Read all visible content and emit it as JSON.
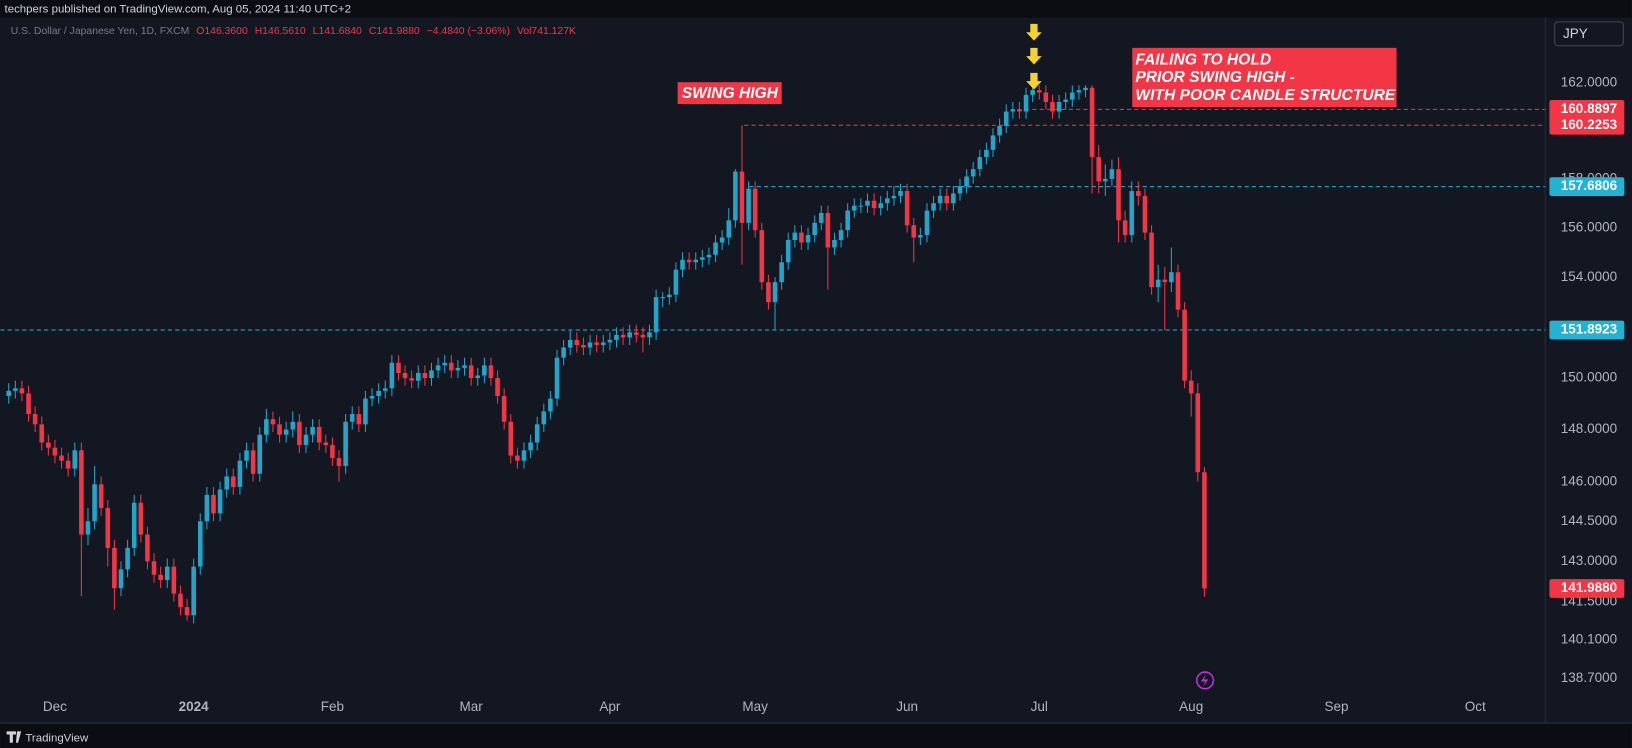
{
  "header": "techpers published on TradingView.com, Aug 05, 2024 11:40 UTC+2",
  "footer": "TradingView",
  "chart_data": {
    "type": "candlestick",
    "symbol": "U.S. Dollar / Japanese Yen, 1D, FXCM",
    "legend_values": [
      "O146.3600",
      "H146.5610",
      "L141.6840",
      "C141.9880",
      "−4.4840 (−3.06%)",
      "Vol741.127K"
    ],
    "currency": "JPY",
    "log_scale": true,
    "grid": false,
    "up_color": "#22a5c9",
    "down_color": "#f23645",
    "ylim": [
      138.1,
      164.74
    ],
    "yticks": [
      {
        "value": 162,
        "label": "162.0000"
      },
      {
        "value": 158,
        "label": "158.0000"
      },
      {
        "value": 156,
        "label": "156.0000"
      },
      {
        "value": 154,
        "label": "154.0000"
      },
      {
        "value": 150,
        "label": "150.0000"
      },
      {
        "value": 148,
        "label": "148.0000"
      },
      {
        "value": 146,
        "label": "146.0000"
      },
      {
        "value": 144.5,
        "label": "144.5000"
      },
      {
        "value": 143,
        "label": "143.0000"
      },
      {
        "value": 141.5,
        "label": "141.5000"
      },
      {
        "value": 140.1,
        "label": "140.1000"
      },
      {
        "value": 138.7,
        "label": "138.7000"
      }
    ],
    "price_lines": [
      {
        "value": 160.8897,
        "color": "#f23645"
      },
      {
        "value": 160.2253,
        "color": "#f23645"
      },
      {
        "value": 157.6806,
        "color": "#22b3d3"
      },
      {
        "value": 151.8923,
        "color": "#22b3d3"
      }
    ],
    "last_price_label": "141.9880",
    "annotations": [
      "SWING HIGH",
      "FAILING TO HOLD",
      "PRIOR SWING HIGH -",
      "WITH POOR CANDLE STRUCTURE"
    ],
    "categories": [
      null,
      null,
      null,
      null,
      null,
      null,
      null,
      "Dec",
      null,
      null,
      null,
      null,
      null,
      null,
      null,
      null,
      null,
      null,
      null,
      null,
      null,
      null,
      null,
      null,
      null,
      null,
      null,
      null,
      "2024",
      null,
      null,
      null,
      null,
      null,
      null,
      null,
      null,
      null,
      null,
      null,
      null,
      null,
      null,
      null,
      null,
      null,
      null,
      null,
      null,
      "Feb",
      null,
      null,
      null,
      null,
      null,
      null,
      null,
      null,
      null,
      null,
      null,
      null,
      null,
      null,
      null,
      null,
      null,
      null,
      null,
      null,
      "Mar",
      null,
      null,
      null,
      null,
      null,
      null,
      null,
      null,
      null,
      null,
      null,
      null,
      null,
      null,
      null,
      null,
      null,
      null,
      null,
      null,
      "Apr",
      null,
      null,
      null,
      null,
      null,
      null,
      null,
      null,
      null,
      null,
      null,
      null,
      null,
      null,
      null,
      null,
      null,
      null,
      null,
      null,
      null,
      "May",
      null,
      null,
      null,
      null,
      null,
      null,
      null,
      null,
      null,
      null,
      null,
      null,
      null,
      null,
      null,
      null,
      null,
      null,
      null,
      null,
      null,
      null,
      "Jun",
      null,
      null,
      null,
      null,
      null,
      null,
      null,
      null,
      null,
      null,
      null,
      null,
      null,
      null,
      null,
      null,
      null,
      null,
      null,
      "Jul",
      null,
      null,
      null,
      null,
      null,
      null,
      null,
      null,
      null,
      null,
      null,
      null,
      null,
      null,
      null,
      null,
      null,
      null,
      null,
      null,
      null,
      null,
      "Aug",
      null,
      null,
      null,
      null,
      null,
      null,
      null,
      null,
      null,
      null,
      null,
      null,
      null,
      null,
      null,
      null,
      null,
      null,
      null,
      null,
      null,
      "Sep",
      null,
      null,
      null,
      null,
      null,
      null,
      null,
      null,
      null,
      null,
      null,
      null,
      null,
      null,
      null,
      null,
      null,
      null,
      null,
      null,
      "Oct",
      null,
      null,
      null,
      null,
      null,
      null,
      null,
      null,
      null,
      null
    ],
    "ohlc": [
      [
        149.3,
        149.8,
        149.0,
        149.5
      ],
      [
        149.5,
        149.9,
        149.2,
        149.6
      ],
      [
        149.6,
        149.9,
        149.1,
        149.4
      ],
      [
        149.4,
        149.7,
        148.3,
        148.6
      ],
      [
        148.6,
        148.9,
        147.9,
        148.2
      ],
      [
        148.2,
        148.5,
        147.2,
        147.5
      ],
      [
        147.5,
        147.8,
        147.0,
        147.3
      ],
      [
        147.3,
        147.6,
        146.7,
        147.0
      ],
      [
        147.0,
        147.3,
        146.5,
        146.8
      ],
      [
        146.8,
        147.1,
        146.2,
        146.5
      ],
      [
        146.5,
        147.5,
        146.2,
        147.2
      ],
      [
        147.2,
        147.5,
        141.7,
        144.0
      ],
      [
        144.0,
        145.0,
        143.6,
        144.5
      ],
      [
        144.5,
        146.6,
        144.2,
        145.9
      ],
      [
        145.9,
        146.2,
        144.7,
        145.0
      ],
      [
        145.0,
        145.3,
        142.8,
        143.5
      ],
      [
        143.5,
        143.8,
        141.2,
        142.0
      ],
      [
        142.0,
        143.0,
        141.7,
        142.7
      ],
      [
        142.7,
        143.8,
        142.4,
        143.5
      ],
      [
        143.5,
        145.5,
        143.2,
        145.2
      ],
      [
        145.2,
        145.5,
        143.7,
        144.0
      ],
      [
        144.0,
        144.3,
        142.7,
        143.0
      ],
      [
        143.0,
        143.3,
        142.2,
        142.5
      ],
      [
        142.5,
        142.8,
        142.0,
        142.3
      ],
      [
        142.3,
        143.1,
        142.0,
        142.8
      ],
      [
        142.8,
        143.1,
        141.5,
        141.8
      ],
      [
        141.8,
        142.1,
        141.0,
        141.3
      ],
      [
        141.3,
        141.6,
        140.8,
        141.0
      ],
      [
        141.0,
        143.1,
        140.7,
        142.8
      ],
      [
        142.8,
        144.8,
        142.5,
        144.5
      ],
      [
        144.5,
        145.8,
        144.2,
        145.5
      ],
      [
        145.5,
        145.8,
        144.5,
        144.8
      ],
      [
        144.8,
        146.0,
        144.5,
        145.7
      ],
      [
        145.7,
        146.5,
        145.4,
        146.2
      ],
      [
        146.2,
        146.5,
        145.5,
        145.8
      ],
      [
        145.8,
        147.1,
        145.5,
        146.8
      ],
      [
        146.8,
        147.5,
        146.5,
        147.2
      ],
      [
        147.2,
        147.5,
        146.0,
        146.3
      ],
      [
        146.3,
        148.1,
        146.0,
        147.8
      ],
      [
        147.8,
        148.8,
        147.5,
        148.4
      ],
      [
        148.4,
        148.7,
        147.9,
        148.2
      ],
      [
        148.2,
        148.5,
        147.5,
        147.8
      ],
      [
        147.8,
        148.3,
        147.5,
        148.0
      ],
      [
        148.0,
        148.7,
        147.7,
        148.3
      ],
      [
        148.3,
        148.6,
        147.1,
        147.4
      ],
      [
        147.4,
        148.1,
        147.1,
        147.8
      ],
      [
        147.8,
        148.4,
        147.5,
        148.1
      ],
      [
        148.1,
        148.4,
        147.2,
        147.5
      ],
      [
        147.5,
        147.8,
        147.1,
        147.4
      ],
      [
        147.4,
        147.7,
        146.6,
        146.9
      ],
      [
        146.9,
        147.2,
        146.0,
        146.6
      ],
      [
        146.6,
        148.6,
        146.3,
        148.3
      ],
      [
        148.3,
        148.9,
        148.0,
        148.6
      ],
      [
        148.6,
        148.9,
        147.9,
        148.2
      ],
      [
        148.2,
        149.5,
        147.9,
        149.2
      ],
      [
        149.2,
        149.6,
        148.9,
        149.3
      ],
      [
        149.3,
        149.8,
        149.0,
        149.5
      ],
      [
        149.5,
        149.9,
        149.2,
        149.6
      ],
      [
        149.6,
        150.9,
        149.3,
        150.6
      ],
      [
        150.6,
        150.9,
        149.9,
        150.2
      ],
      [
        150.2,
        150.5,
        149.7,
        150.0
      ],
      [
        150.0,
        150.3,
        149.6,
        149.9
      ],
      [
        149.9,
        150.5,
        149.6,
        150.2
      ],
      [
        150.2,
        150.5,
        149.7,
        150.0
      ],
      [
        150.0,
        150.6,
        149.7,
        150.3
      ],
      [
        150.3,
        150.8,
        150.0,
        150.5
      ],
      [
        150.5,
        150.9,
        150.2,
        150.6
      ],
      [
        150.6,
        150.9,
        150.0,
        150.3
      ],
      [
        150.3,
        150.7,
        150.0,
        150.4
      ],
      [
        150.4,
        150.8,
        150.1,
        150.5
      ],
      [
        150.5,
        150.8,
        149.7,
        150.0
      ],
      [
        150.0,
        150.4,
        149.7,
        150.1
      ],
      [
        150.1,
        150.8,
        149.8,
        150.5
      ],
      [
        150.5,
        150.8,
        149.7,
        150.0
      ],
      [
        150.0,
        150.3,
        149.0,
        149.3
      ],
      [
        149.3,
        149.6,
        148.0,
        148.3
      ],
      [
        148.3,
        148.6,
        146.7,
        147.0
      ],
      [
        147.0,
        147.3,
        146.5,
        146.8
      ],
      [
        146.8,
        147.5,
        146.5,
        147.2
      ],
      [
        147.2,
        147.8,
        146.9,
        147.5
      ],
      [
        147.5,
        148.5,
        147.2,
        148.2
      ],
      [
        148.2,
        149.0,
        147.9,
        148.7
      ],
      [
        148.7,
        149.5,
        148.4,
        149.2
      ],
      [
        149.2,
        151.1,
        148.9,
        150.8
      ],
      [
        150.8,
        151.5,
        150.5,
        151.2
      ],
      [
        151.2,
        151.9,
        150.9,
        151.5
      ],
      [
        151.5,
        151.8,
        151.0,
        151.3
      ],
      [
        151.3,
        151.6,
        150.9,
        151.2
      ],
      [
        151.2,
        151.7,
        150.9,
        151.4
      ],
      [
        151.4,
        151.7,
        151.0,
        151.3
      ],
      [
        151.3,
        151.7,
        151.0,
        151.4
      ],
      [
        151.4,
        151.8,
        151.1,
        151.5
      ],
      [
        151.5,
        152.0,
        151.2,
        151.7
      ],
      [
        151.7,
        152.0,
        151.3,
        151.6
      ],
      [
        151.6,
        152.1,
        151.3,
        151.8
      ],
      [
        151.8,
        152.1,
        151.4,
        151.7
      ],
      [
        151.7,
        152.0,
        151.0,
        151.6
      ],
      [
        151.6,
        152.1,
        151.3,
        151.8
      ],
      [
        151.8,
        153.5,
        151.5,
        153.2
      ],
      [
        153.2,
        153.4,
        152.8,
        153.2
      ],
      [
        153.2,
        153.6,
        152.9,
        153.3
      ],
      [
        153.3,
        154.6,
        153.0,
        154.3
      ],
      [
        154.3,
        155.0,
        154.0,
        154.7
      ],
      [
        154.7,
        155.0,
        154.3,
        154.6
      ],
      [
        154.6,
        155.0,
        154.3,
        154.7
      ],
      [
        154.7,
        155.1,
        154.4,
        154.8
      ],
      [
        154.8,
        155.2,
        154.5,
        154.9
      ],
      [
        154.9,
        155.7,
        154.6,
        155.4
      ],
      [
        155.4,
        155.9,
        155.1,
        155.6
      ],
      [
        155.6,
        156.8,
        155.3,
        156.3
      ],
      [
        156.3,
        158.4,
        156.0,
        158.3
      ],
      [
        158.3,
        160.22,
        154.5,
        156.2
      ],
      [
        156.2,
        157.9,
        155.9,
        157.6
      ],
      [
        157.6,
        157.9,
        155.6,
        155.9
      ],
      [
        155.9,
        156.2,
        153.5,
        153.8
      ],
      [
        153.8,
        154.1,
        152.7,
        153.0
      ],
      [
        153.0,
        154.0,
        151.89,
        153.8
      ],
      [
        153.8,
        154.9,
        153.5,
        154.6
      ],
      [
        154.6,
        155.8,
        154.3,
        155.5
      ],
      [
        155.5,
        156.1,
        155.2,
        155.8
      ],
      [
        155.8,
        156.1,
        155.1,
        155.4
      ],
      [
        155.4,
        156.0,
        155.1,
        155.7
      ],
      [
        155.7,
        156.5,
        155.4,
        156.2
      ],
      [
        156.2,
        156.9,
        155.9,
        156.6
      ],
      [
        156.6,
        156.9,
        153.5,
        155.2
      ],
      [
        155.2,
        155.8,
        154.9,
        155.5
      ],
      [
        155.5,
        156.2,
        155.2,
        155.9
      ],
      [
        155.9,
        157.0,
        155.6,
        156.7
      ],
      [
        156.7,
        157.2,
        156.4,
        156.9
      ],
      [
        156.9,
        157.2,
        156.6,
        156.9
      ],
      [
        156.9,
        157.4,
        156.6,
        157.1
      ],
      [
        157.1,
        157.4,
        156.5,
        156.8
      ],
      [
        156.8,
        157.3,
        156.5,
        157.0
      ],
      [
        157.0,
        157.5,
        156.7,
        157.2
      ],
      [
        157.2,
        157.7,
        156.9,
        157.3
      ],
      [
        157.3,
        157.8,
        157.0,
        157.5
      ],
      [
        157.5,
        157.8,
        155.8,
        156.1
      ],
      [
        156.1,
        156.4,
        154.6,
        155.6
      ],
      [
        155.6,
        156.0,
        155.3,
        155.7
      ],
      [
        155.7,
        157.0,
        155.4,
        156.7
      ],
      [
        156.7,
        157.3,
        156.4,
        157.0
      ],
      [
        157.0,
        157.6,
        156.7,
        157.3
      ],
      [
        157.3,
        157.6,
        156.7,
        157.0
      ],
      [
        157.0,
        157.7,
        156.7,
        157.4
      ],
      [
        157.4,
        158.0,
        157.1,
        157.7
      ],
      [
        157.7,
        158.4,
        157.4,
        158.1
      ],
      [
        158.1,
        158.7,
        157.8,
        158.4
      ],
      [
        158.4,
        159.2,
        158.1,
        158.9
      ],
      [
        158.9,
        159.5,
        158.6,
        159.2
      ],
      [
        159.2,
        160.1,
        158.9,
        159.8
      ],
      [
        159.8,
        160.5,
        159.5,
        160.2
      ],
      [
        160.2,
        161.1,
        159.9,
        160.8
      ],
      [
        160.8,
        161.2,
        160.5,
        160.9
      ],
      [
        160.9,
        161.2,
        160.5,
        160.8
      ],
      [
        160.8,
        161.8,
        160.5,
        161.5
      ],
      [
        161.5,
        161.95,
        161.2,
        161.7
      ],
      [
        161.7,
        161.9,
        161.3,
        161.6
      ],
      [
        161.6,
        161.9,
        160.9,
        161.2
      ],
      [
        161.2,
        161.5,
        160.5,
        160.8
      ],
      [
        160.8,
        161.5,
        160.5,
        161.2
      ],
      [
        161.2,
        161.6,
        160.9,
        161.3
      ],
      [
        161.3,
        161.9,
        161.0,
        161.6
      ],
      [
        161.6,
        161.9,
        161.3,
        161.7
      ],
      [
        161.7,
        161.9,
        161.4,
        161.8
      ],
      [
        161.8,
        161.9,
        157.4,
        158.9
      ],
      [
        158.9,
        159.4,
        157.4,
        157.9
      ],
      [
        157.9,
        158.6,
        157.3,
        158.0
      ],
      [
        158.0,
        158.8,
        157.7,
        158.4
      ],
      [
        158.4,
        158.9,
        155.4,
        156.3
      ],
      [
        156.3,
        156.7,
        155.4,
        155.7
      ],
      [
        155.7,
        157.9,
        155.4,
        157.5
      ],
      [
        157.5,
        157.9,
        156.9,
        157.3
      ],
      [
        157.3,
        157.6,
        155.5,
        155.8
      ],
      [
        155.8,
        156.1,
        153.3,
        153.6
      ],
      [
        153.6,
        154.5,
        153.0,
        153.9
      ],
      [
        153.9,
        154.4,
        151.89,
        153.8
      ],
      [
        153.8,
        155.2,
        153.4,
        154.2
      ],
      [
        154.2,
        154.5,
        152.4,
        152.7
      ],
      [
        152.7,
        153.0,
        149.6,
        149.9
      ],
      [
        149.9,
        150.3,
        148.5,
        149.4
      ],
      [
        149.4,
        149.8,
        146.0,
        146.36
      ],
      [
        146.36,
        146.561,
        141.684,
        141.988
      ],
      null,
      null,
      null,
      null,
      null,
      null,
      null,
      null,
      null,
      null,
      null,
      null,
      null,
      null,
      null,
      null,
      null,
      null,
      null,
      null,
      null,
      null,
      null,
      null,
      null,
      null,
      null,
      null,
      null,
      null,
      null,
      null,
      null,
      null,
      null,
      null,
      null,
      null,
      null,
      null,
      null,
      null,
      null,
      null,
      null,
      null,
      null,
      null,
      null,
      null,
      null
    ]
  }
}
